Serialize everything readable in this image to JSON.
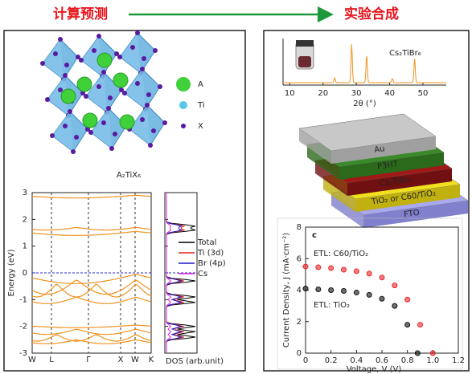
{
  "header": {
    "left": "计算预测",
    "right": "实验合成"
  },
  "crystal": {
    "legend": [
      "A",
      "Ti",
      "X"
    ],
    "formula": "A₂TiX₆"
  },
  "band_chart": {
    "type": "band",
    "ylabel": "Energy (eV)",
    "ylim": [
      -3,
      3
    ],
    "yticks": [
      -3,
      -2,
      -1,
      0,
      1,
      2,
      3
    ],
    "kpoints": [
      "W",
      "L",
      "Γ",
      "X",
      "W",
      "K"
    ],
    "dos_xlabel": "DOS (arb.unit)",
    "dos_legend": [
      {
        "name": "Total",
        "color": "#000000"
      },
      {
        "name": "Ti (3d)",
        "color": "#e0201b"
      },
      {
        "name": "Br (4p)",
        "color": "#1a1ad0"
      },
      {
        "name": "Cs",
        "color": "#e020e0"
      }
    ]
  },
  "xrd_chart": {
    "type": "line",
    "label": "Cs₂TiBr₆",
    "xlabel": "2θ (°)",
    "xlim": [
      8,
      57
    ],
    "xticks": [
      10,
      20,
      30,
      40,
      50
    ]
  },
  "device": {
    "layers": [
      "Au",
      "P3HT",
      "Cs₂TiBr₆",
      "TiO₂ or C60/TiO₂",
      "FTO"
    ]
  },
  "jv_chart": {
    "type": "scatter",
    "panel": "c",
    "xlabel": "Voltage, V (V)",
    "ylabel": "Current Density, J (mA·cm⁻²)",
    "xlim": [
      0,
      1.2
    ],
    "xticks": [
      0,
      0.2,
      0.4,
      0.6,
      0.8,
      {
        "value": 1,
        "label": "1.0"
      },
      1.2
    ],
    "ylim": [
      0,
      8
    ],
    "yticks": [
      0,
      2,
      4,
      6,
      8
    ],
    "series": [
      {
        "name": "ETL: C60/TiO₂",
        "color": "#e8262b",
        "x": [
          0,
          0.1,
          0.2,
          0.3,
          0.4,
          0.5,
          0.6,
          0.7,
          0.8,
          0.9,
          1.0
        ],
        "values": [
          5.5,
          5.45,
          5.4,
          5.3,
          5.2,
          5.05,
          4.8,
          4.3,
          3.4,
          1.8,
          0
        ]
      },
      {
        "name": "ETL: TiO₂",
        "color": "#111111",
        "x": [
          0,
          0.1,
          0.2,
          0.3,
          0.4,
          0.5,
          0.6,
          0.7,
          0.8,
          0.88
        ],
        "values": [
          4.1,
          4.05,
          4.0,
          3.95,
          3.85,
          3.7,
          3.45,
          3.0,
          1.8,
          0
        ]
      }
    ]
  }
}
